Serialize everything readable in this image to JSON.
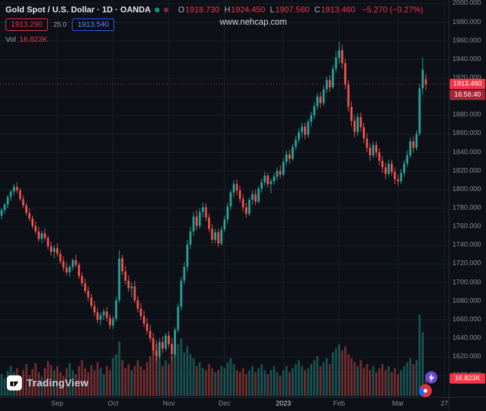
{
  "header": {
    "symbol_title": "Gold Spot / U.S. Dollar · 1D · OANDA",
    "ohlc": [
      {
        "label": "O",
        "value": "1918.730"
      },
      {
        "label": "H",
        "value": "1924.450"
      },
      {
        "label": "L",
        "value": "1907.560"
      },
      {
        "label": "C",
        "value": "1913.460"
      }
    ],
    "change": "−5.270 (−0.27%)",
    "sell_price": "1913.290",
    "spread": "25.0",
    "buy_price": "1913.540",
    "vol_label": "Vol",
    "vol_value": "16.823K"
  },
  "watermark": "www.nehcap.com",
  "price_scale": {
    "current_price": "1913.460",
    "countdown": "16:56:40",
    "volume_badge": "16.823K"
  },
  "footer": {
    "logo_text": "TradingView"
  },
  "colors": {
    "bg": "#0d1017",
    "grid": "#1b2028",
    "axis_line": "#2a3040",
    "up": "#26a69a",
    "down": "#ef5350",
    "vol_up": "#26a69a73",
    "vol_down": "#ef535073",
    "accent_red": "#f23645",
    "countdown_bg": "#a32734",
    "blue": "#2962ff",
    "purple": "#6f46d4",
    "dot_green": "#089981",
    "dot_red": "#7f2a33",
    "text_muted": "#868b97",
    "text_bright": "#e7e9ee"
  },
  "chart_data": {
    "type": "candlestick",
    "title": "Gold Spot / U.S. Dollar",
    "exchange": "OANDA",
    "interval": "1D",
    "legend_position": "top-left",
    "grid": true,
    "price_line": 1913.46,
    "last_candle": {
      "open": 1918.73,
      "high": 1924.45,
      "low": 1907.56,
      "close": 1913.46,
      "change": -5.27,
      "change_pct": -0.27
    },
    "last_volume_text": "16.823K",
    "y_axis": {
      "side": "right",
      "tick_step": 20,
      "range_top": 2004,
      "range_bottom": 1577,
      "ticks": [
        "2000.000",
        "1980.000",
        "1960.000",
        "1940.000",
        "1920.000",
        "1900.000",
        "1880.000",
        "1860.000",
        "1840.000",
        "1820.000",
        "1800.000",
        "1780.000",
        "1760.000",
        "1740.000",
        "1720.000",
        "1700.000",
        "1680.000",
        "1660.000",
        "1640.000",
        "1620.000",
        "1600.000"
      ]
    },
    "x_axis": {
      "labels": [
        {
          "text": "Sep",
          "candle": 19
        },
        {
          "text": "Oct",
          "candle": 37
        },
        {
          "text": "Nov",
          "candle": 55
        },
        {
          "text": "Dec",
          "candle": 73
        },
        {
          "text": "2023",
          "candle": 92,
          "year": true
        },
        {
          "text": "Feb",
          "candle": 110
        },
        {
          "text": "Mar",
          "candle": 129
        },
        {
          "text": "27",
          "candle": 144
        }
      ]
    },
    "candles": [
      [
        1772,
        1780,
        1768,
        1778
      ],
      [
        1778,
        1786,
        1774,
        1784
      ],
      [
        1784,
        1794,
        1780,
        1792
      ],
      [
        1792,
        1800,
        1788,
        1798
      ],
      [
        1798,
        1806,
        1794,
        1803
      ],
      [
        1803,
        1808,
        1796,
        1799
      ],
      [
        1799,
        1802,
        1788,
        1790
      ],
      [
        1790,
        1794,
        1780,
        1783
      ],
      [
        1783,
        1786,
        1772,
        1775
      ],
      [
        1775,
        1780,
        1766,
        1769
      ],
      [
        1769,
        1772,
        1758,
        1761
      ],
      [
        1761,
        1766,
        1752,
        1755
      ],
      [
        1755,
        1760,
        1744,
        1747
      ],
      [
        1747,
        1756,
        1742,
        1753
      ],
      [
        1753,
        1758,
        1745,
        1748
      ],
      [
        1748,
        1751,
        1736,
        1739
      ],
      [
        1739,
        1744,
        1729,
        1733
      ],
      [
        1733,
        1740,
        1726,
        1737
      ],
      [
        1737,
        1742,
        1728,
        1731
      ],
      [
        1731,
        1735,
        1720,
        1723
      ],
      [
        1723,
        1728,
        1712,
        1716
      ],
      [
        1716,
        1722,
        1708,
        1711
      ],
      [
        1711,
        1719,
        1706,
        1717
      ],
      [
        1717,
        1726,
        1713,
        1724
      ],
      [
        1724,
        1730,
        1716,
        1719
      ],
      [
        1719,
        1722,
        1704,
        1707
      ],
      [
        1707,
        1711,
        1696,
        1699
      ],
      [
        1699,
        1704,
        1688,
        1691
      ],
      [
        1691,
        1696,
        1680,
        1684
      ],
      [
        1684,
        1688,
        1672,
        1675
      ],
      [
        1675,
        1680,
        1664,
        1668
      ],
      [
        1668,
        1673,
        1656,
        1660
      ],
      [
        1660,
        1668,
        1654,
        1665
      ],
      [
        1665,
        1672,
        1660,
        1669
      ],
      [
        1669,
        1674,
        1658,
        1662
      ],
      [
        1662,
        1666,
        1650,
        1654
      ],
      [
        1654,
        1664,
        1650,
        1661
      ],
      [
        1661,
        1685,
        1658,
        1681
      ],
      [
        1681,
        1735,
        1678,
        1726
      ],
      [
        1726,
        1730,
        1708,
        1712
      ],
      [
        1712,
        1718,
        1698,
        1702
      ],
      [
        1702,
        1708,
        1690,
        1694
      ],
      [
        1694,
        1700,
        1684,
        1696
      ],
      [
        1696,
        1702,
        1678,
        1681
      ],
      [
        1681,
        1686,
        1668,
        1672
      ],
      [
        1672,
        1678,
        1660,
        1664
      ],
      [
        1664,
        1670,
        1652,
        1656
      ],
      [
        1656,
        1662,
        1644,
        1648
      ],
      [
        1648,
        1655,
        1636,
        1640
      ],
      [
        1640,
        1646,
        1622,
        1627
      ],
      [
        1627,
        1638,
        1615,
        1621
      ],
      [
        1621,
        1640,
        1618,
        1636
      ],
      [
        1636,
        1642,
        1624,
        1629
      ],
      [
        1629,
        1646,
        1626,
        1643
      ],
      [
        1643,
        1648,
        1630,
        1634
      ],
      [
        1634,
        1640,
        1618,
        1623
      ],
      [
        1623,
        1652,
        1620,
        1649
      ],
      [
        1649,
        1678,
        1646,
        1674
      ],
      [
        1674,
        1706,
        1670,
        1702
      ],
      [
        1702,
        1722,
        1698,
        1717
      ],
      [
        1717,
        1746,
        1712,
        1741
      ],
      [
        1741,
        1760,
        1736,
        1755
      ],
      [
        1755,
        1776,
        1750,
        1771
      ],
      [
        1771,
        1778,
        1756,
        1761
      ],
      [
        1761,
        1780,
        1758,
        1776
      ],
      [
        1776,
        1786,
        1770,
        1781
      ],
      [
        1781,
        1785,
        1766,
        1770
      ],
      [
        1770,
        1774,
        1754,
        1758
      ],
      [
        1758,
        1763,
        1742,
        1746
      ],
      [
        1746,
        1758,
        1742,
        1754
      ],
      [
        1754,
        1758,
        1738,
        1742
      ],
      [
        1742,
        1760,
        1740,
        1757
      ],
      [
        1757,
        1772,
        1754,
        1768
      ],
      [
        1768,
        1786,
        1764,
        1782
      ],
      [
        1782,
        1800,
        1778,
        1797
      ],
      [
        1797,
        1810,
        1792,
        1806
      ],
      [
        1806,
        1811,
        1794,
        1799
      ],
      [
        1799,
        1804,
        1786,
        1790
      ],
      [
        1790,
        1795,
        1776,
        1781
      ],
      [
        1781,
        1786,
        1770,
        1774
      ],
      [
        1774,
        1792,
        1772,
        1789
      ],
      [
        1789,
        1799,
        1784,
        1795
      ],
      [
        1795,
        1800,
        1783,
        1787
      ],
      [
        1787,
        1804,
        1785,
        1801
      ],
      [
        1801,
        1812,
        1797,
        1808
      ],
      [
        1808,
        1819,
        1804,
        1815
      ],
      [
        1815,
        1818,
        1802,
        1806
      ],
      [
        1806,
        1812,
        1796,
        1809
      ],
      [
        1809,
        1818,
        1805,
        1814
      ],
      [
        1814,
        1824,
        1810,
        1820
      ],
      [
        1820,
        1826,
        1812,
        1816
      ],
      [
        1816,
        1834,
        1814,
        1830
      ],
      [
        1830,
        1842,
        1826,
        1838
      ],
      [
        1838,
        1843,
        1828,
        1833
      ],
      [
        1833,
        1849,
        1831,
        1846
      ],
      [
        1846,
        1858,
        1842,
        1854
      ],
      [
        1854,
        1866,
        1850,
        1862
      ],
      [
        1862,
        1872,
        1856,
        1868
      ],
      [
        1868,
        1872,
        1854,
        1859
      ],
      [
        1859,
        1876,
        1856,
        1873
      ],
      [
        1873,
        1884,
        1868,
        1880
      ],
      [
        1880,
        1894,
        1876,
        1890
      ],
      [
        1890,
        1904,
        1886,
        1900
      ],
      [
        1900,
        1905,
        1888,
        1893
      ],
      [
        1893,
        1912,
        1890,
        1908
      ],
      [
        1908,
        1922,
        1904,
        1918
      ],
      [
        1918,
        1923,
        1905,
        1910
      ],
      [
        1910,
        1934,
        1908,
        1930
      ],
      [
        1930,
        1949,
        1926,
        1942
      ],
      [
        1942,
        1959,
        1936,
        1950
      ],
      [
        1950,
        1956,
        1930,
        1936
      ],
      [
        1936,
        1941,
        1908,
        1913
      ],
      [
        1913,
        1918,
        1884,
        1889
      ],
      [
        1889,
        1895,
        1868,
        1874
      ],
      [
        1874,
        1880,
        1856,
        1862
      ],
      [
        1862,
        1882,
        1858,
        1878
      ],
      [
        1878,
        1883,
        1862,
        1867
      ],
      [
        1867,
        1872,
        1850,
        1855
      ],
      [
        1855,
        1861,
        1840,
        1845
      ],
      [
        1845,
        1850,
        1831,
        1837
      ],
      [
        1837,
        1852,
        1834,
        1848
      ],
      [
        1848,
        1852,
        1835,
        1840
      ],
      [
        1840,
        1845,
        1826,
        1831
      ],
      [
        1831,
        1836,
        1818,
        1824
      ],
      [
        1824,
        1829,
        1811,
        1817
      ],
      [
        1817,
        1832,
        1814,
        1828
      ],
      [
        1828,
        1832,
        1815,
        1819
      ],
      [
        1819,
        1824,
        1806,
        1811
      ],
      [
        1811,
        1816,
        1804,
        1809
      ],
      [
        1809,
        1822,
        1806,
        1818
      ],
      [
        1818,
        1832,
        1814,
        1828
      ],
      [
        1828,
        1842,
        1824,
        1837
      ],
      [
        1837,
        1856,
        1834,
        1852
      ],
      [
        1852,
        1857,
        1840,
        1845
      ],
      [
        1845,
        1864,
        1842,
        1860
      ],
      [
        1860,
        1914,
        1858,
        1909
      ],
      [
        1909,
        1942,
        1902,
        1929
      ],
      [
        1918.73,
        1924.45,
        1907.56,
        1913.46
      ]
    ],
    "volumes": [
      22,
      18,
      25,
      30,
      24,
      28,
      20,
      26,
      32,
      21,
      27,
      33,
      24,
      19,
      28,
      35,
      31,
      26,
      30,
      24,
      20,
      28,
      33,
      26,
      22,
      30,
      36,
      28,
      24,
      31,
      26,
      34,
      28,
      22,
      30,
      26,
      38,
      42,
      55,
      36,
      28,
      32,
      26,
      30,
      36,
      30,
      26,
      34,
      40,
      48,
      52,
      44,
      30,
      36,
      32,
      40,
      46,
      52,
      58,
      44,
      50,
      42,
      38,
      30,
      34,
      28,
      26,
      32,
      28,
      24,
      26,
      30,
      28,
      34,
      38,
      32,
      26,
      24,
      28,
      22,
      26,
      30,
      24,
      28,
      32,
      26,
      22,
      26,
      30,
      24,
      20,
      26,
      30,
      24,
      28,
      32,
      36,
      30,
      26,
      28,
      32,
      36,
      40,
      30,
      34,
      38,
      32,
      44,
      48,
      52,
      46,
      50,
      42,
      38,
      34,
      30,
      36,
      28,
      32,
      26,
      30,
      24,
      28,
      32,
      26,
      30,
      24,
      28,
      22,
      26,
      30,
      34,
      38,
      32,
      36,
      82,
      64,
      16.823
    ]
  }
}
